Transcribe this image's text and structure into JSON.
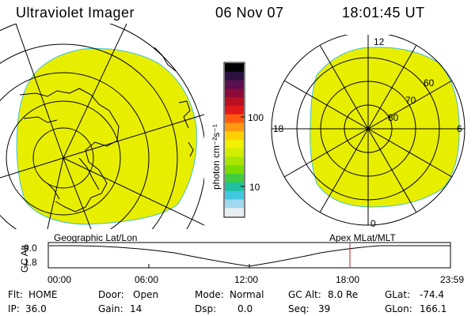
{
  "header": {
    "instrument": "Ultraviolet Imager",
    "date": "06 Nov 07",
    "time": "18:01:45 UT"
  },
  "colorbar": {
    "unit_label": "photon cm⁻²s⁻¹",
    "tick_100": "100",
    "tick_10": "10",
    "colors": [
      "#000000",
      "#2b1040",
      "#5a0f4f",
      "#8b0b3a",
      "#b81020",
      "#e01a1a",
      "#ff5a10",
      "#ff9a10",
      "#ffd000",
      "#f0f000",
      "#cfee00",
      "#a8e600",
      "#7adc00",
      "#40cc40",
      "#20c0a0",
      "#40c8e0",
      "#a0d8f0",
      "#e8eef0"
    ]
  },
  "left_panel": {
    "label": "Geographic Lat/Lon",
    "fill_color": "#e8ee00"
  },
  "right_panel": {
    "label": "Apex MLat/MLT",
    "mlt_top": "12",
    "mlt_left": "18",
    "mlt_right": "6",
    "mlt_bottom": "0",
    "lat_60": "60",
    "lat_70": "70",
    "lat_80": "80",
    "fill_color": "#e8ee00"
  },
  "altitude_plot": {
    "axis_label": "GC Alt",
    "y_high": "9.0",
    "y_low": "1.8",
    "x_labels": [
      "00:00",
      "06:00",
      "12:00",
      "18:00",
      "23:59"
    ]
  },
  "info": {
    "filter_label": "Flt:",
    "filter_value": "HOME",
    "ip_label": "IP:",
    "ip_value": "36.0",
    "door_label": "Door:",
    "door_value": "Open",
    "gain_label": "Gain:",
    "gain_value": "14",
    "mode_label": "Mode:",
    "mode_value": "Normal",
    "dsp_label": "Dsp:",
    "dsp_value": "0.0",
    "gcalt_label": "GC Alt:",
    "gcalt_value": "8.0 Re",
    "seq_label": "Seq:",
    "seq_value": "39",
    "glat_label": "GLat:",
    "glat_value": "-74.4",
    "glon_label": "GLon:",
    "glon_value": "166.1"
  }
}
